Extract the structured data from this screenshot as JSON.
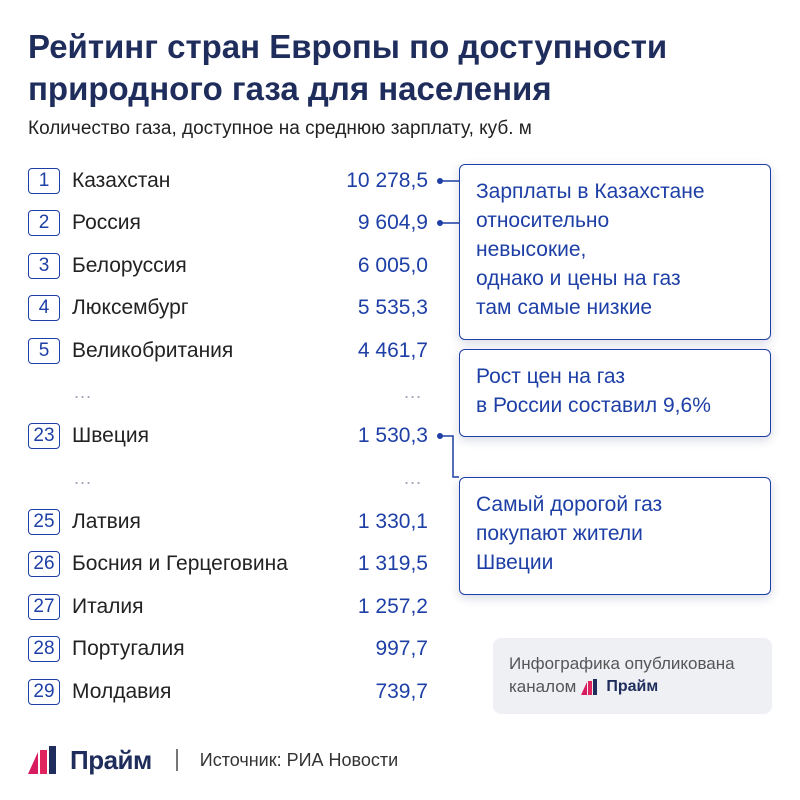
{
  "title": "Рейтинг стран Европы по доступности природного газа для населения",
  "subtitle": "Количество газа, доступное на среднюю зарплату, куб. м",
  "rows": [
    {
      "rank": "1",
      "country": "Казахстан",
      "value": "10 278,5"
    },
    {
      "rank": "2",
      "country": "Россия",
      "value": "9 604,9"
    },
    {
      "rank": "3",
      "country": "Белоруссия",
      "value": "6 005,0"
    },
    {
      "rank": "4",
      "country": "Люксембург",
      "value": "5 535,3"
    },
    {
      "rank": "5",
      "country": "Великобритания",
      "value": "4 461,7"
    },
    {
      "rank": "23",
      "country": "Швеция",
      "value": "1 530,3"
    },
    {
      "rank": "25",
      "country": "Латвия",
      "value": "1 330,1"
    },
    {
      "rank": "26",
      "country": "Босния и Герцеговина",
      "value": "1 319,5"
    },
    {
      "rank": "27",
      "country": "Италия",
      "value": "1 257,2"
    },
    {
      "rank": "28",
      "country": "Португалия",
      "value": "997,7"
    },
    {
      "rank": "29",
      "country": "Молдавия",
      "value": "739,7"
    }
  ],
  "ellipsis": "...",
  "callouts": {
    "kazakhstan": [
      "Зарплаты в Казахстане",
      "относительно",
      "невысокие,",
      "однако и цены на газ",
      "там самые низкие"
    ],
    "russia": [
      "Рост цен на газ",
      "в России составил 9,6%"
    ],
    "sweden": [
      "Самый дорогой газ",
      "покупают жители",
      "Швеции"
    ]
  },
  "publish_note": {
    "line1": "Инфографика опубликована",
    "line2_prefix": "каналом",
    "brand": "Прайм"
  },
  "footer": {
    "brand": "Прайм",
    "source": "Источник: РИА Новости"
  },
  "colors": {
    "title": "#1f2d5c",
    "accent_blue": "#1d3fa6",
    "logo_bars": [
      "#d81b60",
      "#e0245e",
      "#1f2d5c"
    ]
  },
  "icons": {
    "brand_logo": "prime-logo-icon",
    "connector_dot": "dot-icon"
  }
}
